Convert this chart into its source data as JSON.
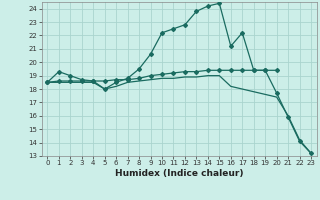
{
  "xlabel": "Humidex (Indice chaleur)",
  "background_color": "#cceee8",
  "grid_color": "#aad4ce",
  "line_color": "#1a6b60",
  "xlim": [
    -0.5,
    23.5
  ],
  "ylim": [
    13,
    24.5
  ],
  "yticks": [
    13,
    14,
    15,
    16,
    17,
    18,
    19,
    20,
    21,
    22,
    23,
    24
  ],
  "xticks": [
    0,
    1,
    2,
    3,
    4,
    5,
    6,
    7,
    8,
    9,
    10,
    11,
    12,
    13,
    14,
    15,
    16,
    17,
    18,
    19,
    20,
    21,
    22,
    23
  ],
  "line1_x": [
    0,
    1,
    2,
    3,
    4,
    5,
    6,
    7,
    8,
    9,
    10,
    11,
    12,
    13,
    14,
    15,
    16,
    17,
    18,
    19,
    20,
    21,
    22,
    23
  ],
  "line1_y": [
    18.5,
    19.3,
    19.0,
    18.7,
    18.6,
    18.0,
    18.5,
    18.8,
    19.5,
    20.6,
    22.2,
    22.5,
    22.8,
    23.8,
    24.2,
    24.4,
    21.2,
    22.2,
    19.4,
    19.4,
    17.7,
    15.9,
    14.1,
    13.2
  ],
  "line2_x": [
    0,
    1,
    2,
    3,
    4,
    5,
    6,
    7,
    8,
    9,
    10,
    11,
    12,
    13,
    14,
    15,
    16,
    17,
    18,
    19,
    20
  ],
  "line2_y": [
    18.5,
    18.6,
    18.6,
    18.6,
    18.6,
    18.6,
    18.7,
    18.7,
    18.8,
    19.0,
    19.1,
    19.2,
    19.3,
    19.3,
    19.4,
    19.4,
    19.4,
    19.4,
    19.4,
    19.4,
    19.4
  ],
  "line3_x": [
    0,
    1,
    2,
    3,
    4,
    5,
    6,
    7,
    8,
    9,
    10,
    11,
    12,
    13,
    14,
    15,
    16,
    17,
    18,
    19,
    20,
    21,
    22,
    23
  ],
  "line3_y": [
    18.5,
    18.5,
    18.5,
    18.5,
    18.5,
    18.0,
    18.2,
    18.5,
    18.6,
    18.7,
    18.8,
    18.8,
    18.9,
    18.9,
    19.0,
    19.0,
    18.2,
    18.0,
    17.8,
    17.6,
    17.4,
    16.0,
    14.2,
    13.2
  ],
  "xlabel_fontsize": 6.5,
  "tick_fontsize": 5.0
}
